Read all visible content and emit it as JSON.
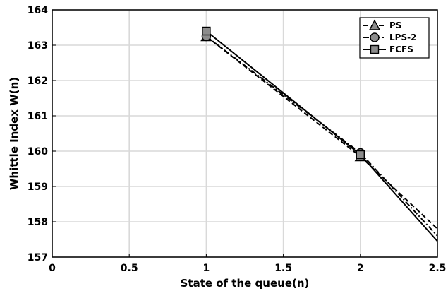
{
  "chart_data": {
    "type": "line",
    "title": "",
    "xlabel": "State of the queue(n)",
    "ylabel": "Whittle Index W(n)",
    "xlim": [
      0,
      2.5
    ],
    "ylim": [
      157,
      164
    ],
    "xticks": [
      0,
      0.5,
      1,
      1.5,
      2,
      2.5
    ],
    "xtick_labels": [
      "0",
      "0.5",
      "1",
      "1.5",
      "2",
      "2.5"
    ],
    "yticks": [
      157,
      158,
      159,
      160,
      161,
      162,
      163,
      164
    ],
    "ytick_labels": [
      "157",
      "158",
      "159",
      "160",
      "161",
      "162",
      "163",
      "164"
    ],
    "grid": true,
    "legend_position": "top-right",
    "series": [
      {
        "name": "PS",
        "marker": "triangle",
        "line_style": "dashed",
        "x": [
          1,
          2,
          2.5
        ],
        "y": [
          163.25,
          159.85,
          157.8
        ],
        "marker_x": [
          1,
          2
        ],
        "color": "#000000",
        "marker_fill": "#8c8c8c"
      },
      {
        "name": "LPS-2",
        "marker": "circle",
        "line_style": "dash-dot",
        "x": [
          1,
          2,
          2.5
        ],
        "y": [
          163.25,
          159.95,
          157.6
        ],
        "marker_x": [
          1,
          2
        ],
        "color": "#000000",
        "marker_fill": "#8c8c8c"
      },
      {
        "name": "FCFS",
        "marker": "square",
        "line_style": "solid",
        "x": [
          1,
          2,
          2.5
        ],
        "y": [
          163.4,
          159.9,
          157.45
        ],
        "marker_x": [
          1,
          2
        ],
        "color": "#000000",
        "marker_fill": "#8c8c8c"
      }
    ]
  }
}
